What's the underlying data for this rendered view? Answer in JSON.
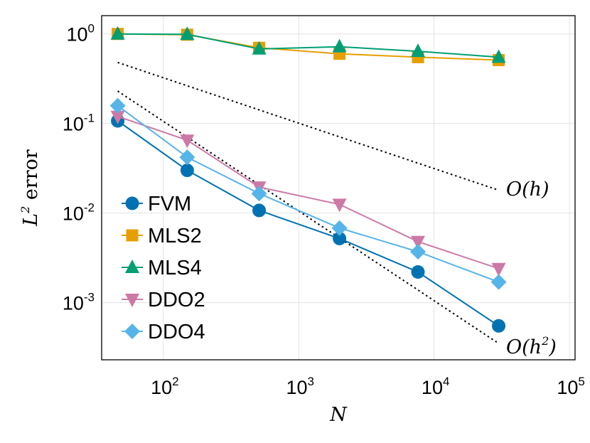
{
  "chart_data": {
    "type": "line",
    "xscale": "log",
    "yscale": "log",
    "xlim": [
      35,
      110000
    ],
    "ylim": [
      0.00023,
      1.6
    ],
    "xlabel": "N",
    "ylabel_base": "L",
    "ylabel_sup": "2",
    "ylabel_rest": " error",
    "x_ticks": [
      {
        "base": "10",
        "exp": "2",
        "value": 100
      },
      {
        "base": "10",
        "exp": "3",
        "value": 1000
      },
      {
        "base": "10",
        "exp": "4",
        "value": 10000
      },
      {
        "base": "10",
        "exp": "5",
        "value": 100000
      }
    ],
    "y_ticks": [
      {
        "base": "10",
        "exp": "0",
        "value": 1
      },
      {
        "base": "10",
        "exp": "-1",
        "value": 0.1
      },
      {
        "base": "10",
        "exp": "-2",
        "value": 0.01
      },
      {
        "base": "10",
        "exp": "-3",
        "value": 0.001
      }
    ],
    "x": [
      46,
      150,
      510,
      2000,
      7600,
      30000
    ],
    "series": [
      {
        "name": "FVM",
        "color": "#0072b2",
        "marker": "circle",
        "values": [
          0.107,
          0.03,
          0.0107,
          0.0052,
          0.0022,
          0.00055
        ]
      },
      {
        "name": "MLS2",
        "color": "#e69f00",
        "marker": "square",
        "values": [
          1.0,
          0.98,
          0.7,
          0.6,
          0.55,
          0.51
        ]
      },
      {
        "name": "MLS4",
        "color": "#009e73",
        "marker": "triangle-up",
        "values": [
          1.0,
          0.99,
          0.68,
          0.72,
          0.64,
          0.55
        ]
      },
      {
        "name": "DDO2",
        "color": "#cc79a7",
        "marker": "triangle-down",
        "values": [
          0.12,
          0.065,
          0.0195,
          0.0125,
          0.0048,
          0.0024
        ]
      },
      {
        "name": "DDO4",
        "color": "#56b4e9",
        "marker": "diamond",
        "values": [
          0.158,
          0.042,
          0.0165,
          0.0068,
          0.0037,
          0.0017
        ]
      }
    ],
    "reference_lines": [
      {
        "name": "O(h)",
        "label_main": "O(h)",
        "label_sup": "",
        "x": [
          46,
          30000
        ],
        "y": [
          0.48,
          0.018
        ],
        "color": "#000000"
      },
      {
        "name": "O(h^2)",
        "label_main": "O(h",
        "label_sup": "2",
        "label_end": ")",
        "x": [
          46,
          30000
        ],
        "y": [
          0.23,
          0.00035
        ],
        "color": "#000000"
      }
    ],
    "legend_position": "lower-left",
    "grid": true
  }
}
